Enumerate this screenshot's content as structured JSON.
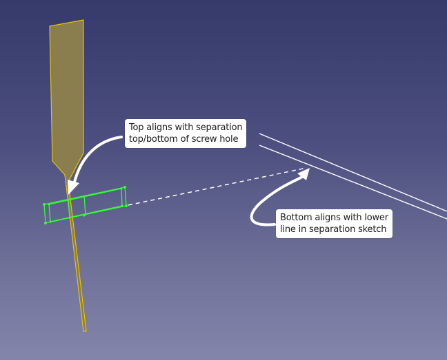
{
  "callouts": {
    "top": {
      "line1": "Top aligns with separation",
      "line2": "top/bottom of screw hole"
    },
    "bottom": {
      "line1": "Bottom aligns with lower",
      "line2": "line in separation sketch"
    }
  },
  "colors": {
    "background_top": "#353a6a",
    "background_bottom": "#8485aa",
    "part_fill": "#8a7d4e",
    "part_edge": "#e8c400",
    "selection_green": "#33ff33",
    "callout_bg": "#ffffff",
    "arrow": "#ffffff"
  }
}
